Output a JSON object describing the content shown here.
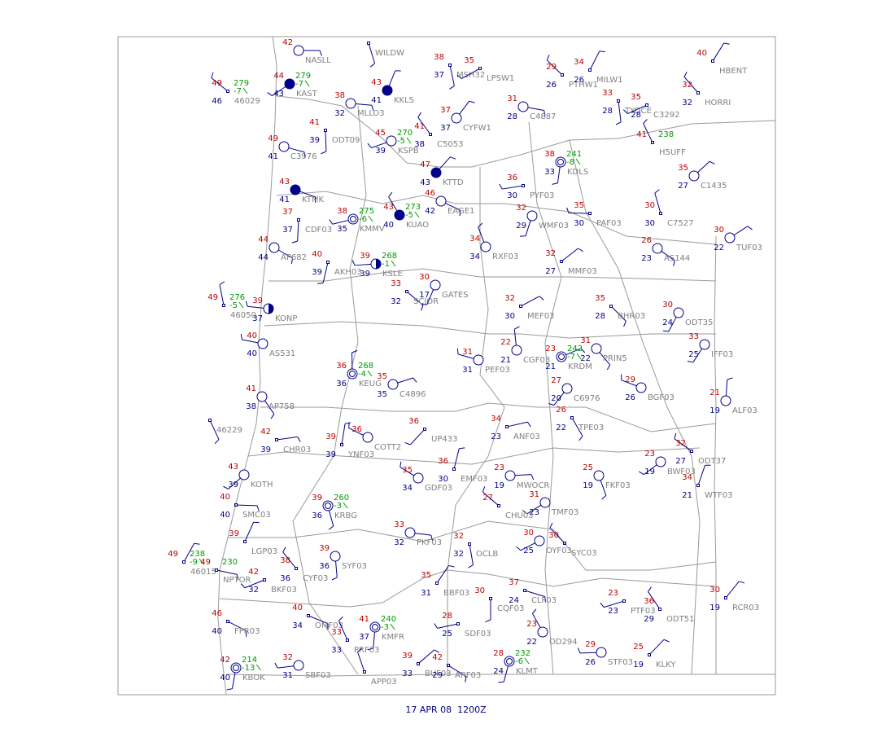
{
  "caption": "17 APR 08  1200Z",
  "stations": [
    {
      "id": "NASLL",
      "temperature": 42
    },
    {
      "id": "WILDW"
    },
    {
      "id": "KAST",
      "temperature": 44,
      "dewpoint": 43,
      "pressure": 279,
      "tendency": -7
    },
    {
      "id": "46029",
      "temperature": 49,
      "dewpoint": 46,
      "pressure": 279,
      "tendency": -7
    },
    {
      "id": "KKLS",
      "temperature": 43,
      "dewpoint": 41
    },
    {
      "id": "MLLO3",
      "temperature": 38,
      "dewpoint": 32
    },
    {
      "id": "MSH32",
      "temperature": 38,
      "dewpoint": 37
    },
    {
      "id": "LPSW1",
      "temperature": 35
    },
    {
      "id": "PTHW1",
      "temperature": 29,
      "dewpoint": 26
    },
    {
      "id": "MILW1",
      "temperature": 34,
      "dewpoint": 26
    },
    {
      "id": "C4887",
      "temperature": 31,
      "dewpoint": 28
    },
    {
      "id": "TYOCE",
      "temperature": 33,
      "dewpoint": 28
    },
    {
      "id": "C3292",
      "temperature": 35,
      "dewpoint": 28
    },
    {
      "id": "HORRI",
      "temperature": 32,
      "dewpoint": 32
    },
    {
      "id": "HBENT",
      "temperature": 40
    },
    {
      "id": "C3976",
      "temperature": 49,
      "dewpoint": 41
    },
    {
      "id": "ODT09",
      "temperature": 41,
      "dewpoint": 39
    },
    {
      "id": "KSPB",
      "temperature": 45,
      "dewpoint": 39,
      "pressure": 270,
      "tendency": -5
    },
    {
      "id": "C5053",
      "temperature": 41,
      "dewpoint": 38
    },
    {
      "id": "CYFW1",
      "temperature": 37,
      "dewpoint": 37
    },
    {
      "id": "KTMK",
      "temperature": 43,
      "dewpoint": 41
    },
    {
      "id": "CDF03",
      "temperature": 37,
      "dewpoint": 37
    },
    {
      "id": "KMMV",
      "temperature": 38,
      "dewpoint": 35,
      "pressure": 275,
      "tendency": -6
    },
    {
      "id": "KUAO",
      "temperature": 43,
      "dewpoint": 40,
      "pressure": 273,
      "tendency": -5
    },
    {
      "id": "KTTD",
      "temperature": 47,
      "dewpoint": 43
    },
    {
      "id": "EAGE1",
      "temperature": 46,
      "dewpoint": 42
    },
    {
      "id": "KDLS",
      "temperature": 38,
      "dewpoint": 33,
      "pressure": 241,
      "tendency": -8
    },
    {
      "id": "PYF03",
      "temperature": 36,
      "dewpoint": 30
    },
    {
      "id": "H5UFF",
      "temperature": 41,
      "pressure": 238
    },
    {
      "id": "C1435",
      "temperature": 35,
      "dewpoint": 27
    },
    {
      "id": "AP682",
      "temperature": 44,
      "dewpoint": 44
    },
    {
      "id": "AKH03",
      "temperature": 40,
      "dewpoint": 39
    },
    {
      "id": "KSLE",
      "temperature": 39,
      "dewpoint": 39,
      "pressure": 268,
      "tendency": -1
    },
    {
      "id": "RXF03",
      "temperature": 34,
      "dewpoint": 34
    },
    {
      "id": "MMF03",
      "temperature": 32,
      "dewpoint": 27
    },
    {
      "id": "AS144",
      "temperature": 26,
      "dewpoint": 23
    },
    {
      "id": "WMF03",
      "temperature": 32,
      "dewpoint": 29
    },
    {
      "id": "PAF03",
      "temperature": 35,
      "dewpoint": 30
    },
    {
      "id": "C7527",
      "temperature": 30,
      "dewpoint": 30
    },
    {
      "id": "TUF03",
      "temperature": 30,
      "dewpoint": 22
    },
    {
      "id": "SCIOR",
      "temperature": 33,
      "dewpoint": 32
    },
    {
      "id": "GATES",
      "temperature": 30,
      "dewpoint": 17
    },
    {
      "id": "KONP",
      "temperature": 39,
      "dewpoint": 37
    },
    {
      "id": "46050",
      "temperature": 49,
      "pressure": 276,
      "tendency": -5
    },
    {
      "id": "MEF03",
      "temperature": 32,
      "dewpoint": 30
    },
    {
      "id": "BHR03",
      "temperature": 35,
      "dewpoint": 28
    },
    {
      "id": "ODT35",
      "temperature": 30,
      "dewpoint": 24
    },
    {
      "id": "AS531",
      "temperature": 40,
      "dewpoint": 40
    },
    {
      "id": "CGF03",
      "temperature": 22,
      "dewpoint": 21
    },
    {
      "id": "KRDM",
      "temperature": 23,
      "dewpoint": 21,
      "pressure": 242,
      "tendency": -7
    },
    {
      "id": "PRIN5",
      "temperature": 31,
      "dewpoint": 22
    },
    {
      "id": "IFF03",
      "temperature": 33,
      "dewpoint": 25
    },
    {
      "id": "PEF03",
      "temperature": 31,
      "dewpoint": 31
    },
    {
      "id": "KEUG",
      "temperature": 36,
      "dewpoint": 36,
      "pressure": 268,
      "tendency": -4
    },
    {
      "id": "C4896",
      "temperature": 35,
      "dewpoint": 35
    },
    {
      "id": "AP758",
      "temperature": 41,
      "dewpoint": 38
    },
    {
      "id": "C6976",
      "temperature": 27,
      "dewpoint": 20
    },
    {
      "id": "BGF03",
      "temperature": 29,
      "dewpoint": 26
    },
    {
      "id": "ALF03",
      "temperature": 21,
      "dewpoint": 19
    },
    {
      "id": "ANF03",
      "temperature": 34,
      "dewpoint": 23
    },
    {
      "id": "TPE03",
      "temperature": 26,
      "dewpoint": 22
    },
    {
      "id": "UP433",
      "temperature": 36
    },
    {
      "id": "COTT2",
      "temperature": 36
    },
    {
      "id": "YNF03",
      "temperature": 39,
      "dewpoint": 39
    },
    {
      "id": "CHR03",
      "temperature": 42,
      "dewpoint": 39
    },
    {
      "id": "46229"
    },
    {
      "id": "KOTH",
      "temperature": 43,
      "dewpoint": 39
    },
    {
      "id": "GDF03",
      "temperature": 35,
      "dewpoint": 34
    },
    {
      "id": "EMF03",
      "temperature": 36,
      "dewpoint": 30
    },
    {
      "id": "MWOCR",
      "temperature": 23,
      "dewpoint": 19
    },
    {
      "id": "FKF03",
      "temperature": 25,
      "dewpoint": 19
    },
    {
      "id": "BWF03",
      "temperature": 23,
      "dewpoint": 19
    },
    {
      "id": "ODT37",
      "temperature": 32,
      "dewpoint": 27
    },
    {
      "id": "WTF03",
      "temperature": 34,
      "dewpoint": 21
    },
    {
      "id": "SMC03",
      "temperature": 40,
      "dewpoint": 40
    },
    {
      "id": "KRBG",
      "temperature": 39,
      "dewpoint": 36,
      "pressure": 260,
      "tendency": -3
    },
    {
      "id": "TMF03",
      "temperature": 31,
      "dewpoint": 23
    },
    {
      "id": "CHU03",
      "temperature": 27
    },
    {
      "id": "LGP03",
      "temperature": 39
    },
    {
      "id": "PKF03",
      "temperature": 33,
      "dewpoint": 32
    },
    {
      "id": "OCLB",
      "temperature": 32,
      "dewpoint": 32
    },
    {
      "id": "OYF03",
      "temperature": 30,
      "dewpoint": 25
    },
    {
      "id": "SYC03",
      "temperature": 30
    },
    {
      "id": "46015",
      "temperature": 49,
      "pressure": 238,
      "tendency": -9
    },
    {
      "id": "NPTOR",
      "temperature": 49,
      "pressure": 230
    },
    {
      "id": "SYF03",
      "temperature": 39,
      "dewpoint": 36
    },
    {
      "id": "BKF03",
      "temperature": 42,
      "dewpoint": 32
    },
    {
      "id": "CYF03",
      "temperature": 38,
      "dewpoint": 36
    },
    {
      "id": "BBF03",
      "temperature": 35,
      "dewpoint": 31
    },
    {
      "id": "CLF03",
      "temperature": 37,
      "dewpoint": 24
    },
    {
      "id": "CQF03",
      "temperature": 30
    },
    {
      "id": "PTF03",
      "temperature": 23,
      "dewpoint": 23
    },
    {
      "id": "ODT51",
      "temperature": 36,
      "dewpoint": 29
    },
    {
      "id": "RCR03",
      "temperature": 30,
      "dewpoint": 19
    },
    {
      "id": "OMF03",
      "temperature": 40,
      "dewpoint": 34
    },
    {
      "id": "KMFR",
      "temperature": 41,
      "dewpoint": 37,
      "pressure": 240,
      "tendency": -3
    },
    {
      "id": "SDF03",
      "temperature": 28,
      "dewpoint": 25
    },
    {
      "id": "OD294",
      "temperature": 23,
      "dewpoint": 22
    },
    {
      "id": "KLKY",
      "temperature": 25,
      "dewpoint": 19
    },
    {
      "id": "FPR03",
      "temperature": 46,
      "dewpoint": 40
    },
    {
      "id": "KBOK",
      "temperature": 42,
      "dewpoint": 40,
      "pressure": 214,
      "tendency": -13
    },
    {
      "id": "SBF03",
      "temperature": 32,
      "dewpoint": 31
    },
    {
      "id": "PRF03",
      "temperature": 33,
      "dewpoint": 33
    },
    {
      "id": "BUF03",
      "temperature": 39,
      "dewpoint": 33
    },
    {
      "id": "ARF03",
      "temperature": 42,
      "dewpoint": 29
    },
    {
      "id": "KLMT",
      "temperature": 28,
      "dewpoint": 24,
      "pressure": 232,
      "tendency": -6
    },
    {
      "id": "STF03",
      "temperature": 29,
      "dewpoint": 26
    },
    {
      "id": "APP03"
    }
  ]
}
